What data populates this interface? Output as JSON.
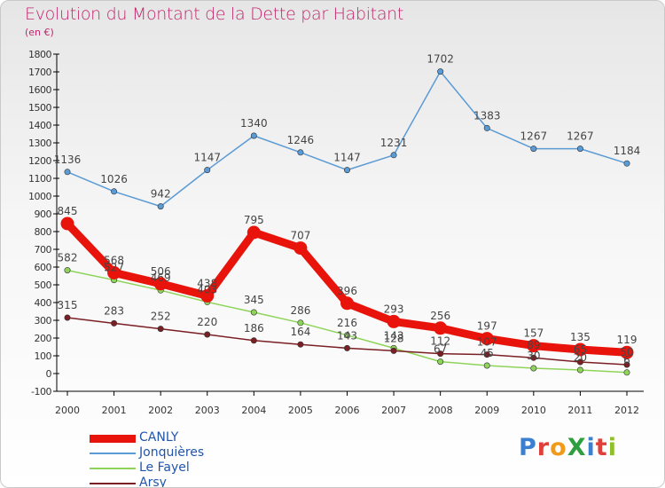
{
  "header": {
    "title": "Evolution du Montant de la Dette par Habitant",
    "subtitle": "(en €)"
  },
  "logo": {
    "text": "ProXiti",
    "letter_colors": [
      "#3a7fd0",
      "#e0403a",
      "#ef9a1a",
      "#2e9e3e",
      "#3a7fd0",
      "#e0403a",
      "#8fbf2a"
    ]
  },
  "colors": {
    "title": "#c0266c",
    "axis_text": "#333333",
    "axis_line": "#000000",
    "legend_text": "#2255aa"
  },
  "chart_data": {
    "type": "line",
    "x": [
      "2000",
      "2001",
      "2002",
      "2003",
      "2004",
      "2005",
      "2006",
      "2007",
      "2008",
      "2009",
      "2010",
      "2011",
      "2012"
    ],
    "ylim": [
      -100,
      1800
    ],
    "ytick_step": 100,
    "grid": false,
    "legend_position": "bottom-left",
    "series": [
      {
        "name": "CANLY",
        "color": "#e8140c",
        "values": [
          845,
          568,
          506,
          438,
          795,
          707,
          396,
          293,
          256,
          197,
          157,
          135,
          119
        ],
        "labels": [
          "845",
          "568",
          "506",
          "438",
          "795",
          "707",
          "396",
          "293",
          "256",
          "197",
          "157",
          "135",
          "119"
        ]
      },
      {
        "name": "Jonquières",
        "color": "#5b9bd5",
        "values": [
          1136,
          1026,
          942,
          1147,
          1340,
          1246,
          1147,
          1231,
          1702,
          1383,
          1267,
          1267,
          1184
        ],
        "labels": [
          "1136",
          "1026",
          "942",
          "1147",
          "1340",
          "1246",
          "1147",
          "1231",
          "1702",
          "1383",
          "1267",
          "1267",
          "1184"
        ]
      },
      {
        "name": "Le Fayel",
        "color": "#8fd45a",
        "values": [
          582,
          527,
          469,
          403,
          345,
          286,
          216,
          143,
          67,
          45,
          30,
          20,
          6
        ],
        "labels": [
          "582",
          "527",
          "469",
          "403",
          "345",
          "286",
          "216",
          "143",
          "67",
          "45",
          "30",
          "20",
          "6"
        ]
      },
      {
        "name": "Arsy",
        "color": "#7a1f24",
        "values": [
          315,
          283,
          252,
          220,
          186,
          164,
          143,
          128,
          112,
          107,
          89,
          65,
          50
        ],
        "labels": [
          "315",
          "283",
          "252",
          "220",
          "186",
          "164",
          "143",
          "128",
          "112",
          "107",
          "89",
          "65",
          "50"
        ]
      }
    ]
  }
}
